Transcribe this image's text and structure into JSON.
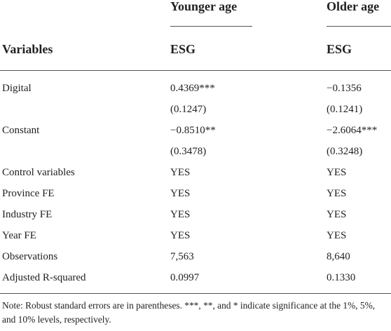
{
  "header": {
    "group_younger": "Younger age",
    "group_older": "Older age",
    "variables_label": "Variables",
    "dep_younger": "ESG",
    "dep_older": "ESG"
  },
  "rows": [
    {
      "label": "Digital",
      "younger": "0.4369***",
      "older": "−0.1356"
    },
    {
      "label": "",
      "younger": "(0.1247)",
      "older": "(0.1241)"
    },
    {
      "label": "Constant",
      "younger": "−0.8510**",
      "older": "−2.6064***"
    },
    {
      "label": "",
      "younger": "(0.3478)",
      "older": "(0.3248)"
    },
    {
      "label": "Control variables",
      "younger": "YES",
      "older": "YES"
    },
    {
      "label": "Province FE",
      "younger": "YES",
      "older": "YES"
    },
    {
      "label": "Industry FE",
      "younger": "YES",
      "older": "YES"
    },
    {
      "label": "Year FE",
      "younger": "YES",
      "older": "YES"
    },
    {
      "label": "Observations",
      "younger": "7,563",
      "older": "8,640"
    },
    {
      "label": "Adjusted R-squared",
      "younger": "0.0997",
      "older": "0.1330"
    }
  ],
  "note": "Note: Robust standard errors are in parentheses. ***, **, and * indicate significance at the 1%, 5%, and 10% levels, respectively."
}
